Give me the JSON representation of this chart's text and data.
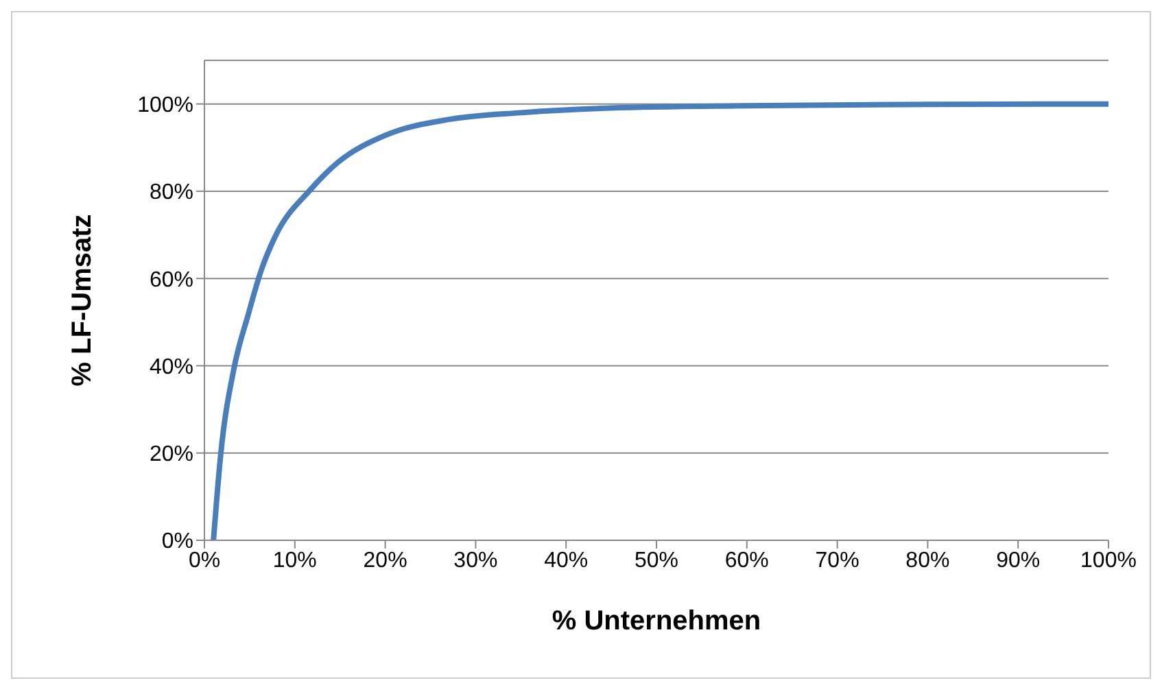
{
  "chart_data": {
    "type": "line",
    "xlabel": "% Unternehmen",
    "ylabel": "% LF-Umsatz",
    "x": [
      1,
      1.8,
      3.3,
      4.8,
      6.3,
      7.8,
      11.7,
      14.7,
      20,
      27.2,
      35,
      44,
      60,
      80,
      100
    ],
    "series": [
      {
        "color": "#4a7ebb",
        "values": [
          0,
          19.6,
          39.7,
          51.4,
          62,
          69.5,
          80.3,
          86.5,
          92.8,
          96.5,
          98,
          99,
          99.6,
          99.9,
          100
        ]
      }
    ],
    "xlim": [
      0,
      100
    ],
    "xticks": [
      {
        "value": 0,
        "label": "0%"
      },
      {
        "value": 10,
        "label": "10%"
      },
      {
        "value": 20,
        "label": "20%"
      },
      {
        "value": 30,
        "label": "30%"
      },
      {
        "value": 40,
        "label": "40%"
      },
      {
        "value": 50,
        "label": "50%"
      },
      {
        "value": 60,
        "label": "60%"
      },
      {
        "value": 70,
        "label": "70%"
      },
      {
        "value": 80,
        "label": "80%"
      },
      {
        "value": 90,
        "label": "90%"
      },
      {
        "value": 100,
        "label": "100%"
      }
    ],
    "ylim": [
      0,
      110
    ],
    "yticks": [
      {
        "value": 0,
        "label": "0%"
      },
      {
        "value": 20,
        "label": "20%"
      },
      {
        "value": 40,
        "label": "40%"
      },
      {
        "value": 60,
        "label": "60%"
      },
      {
        "value": 80,
        "label": "80%"
      },
      {
        "value": 100,
        "label": "100%"
      }
    ],
    "grid": "y",
    "marker": "none"
  }
}
